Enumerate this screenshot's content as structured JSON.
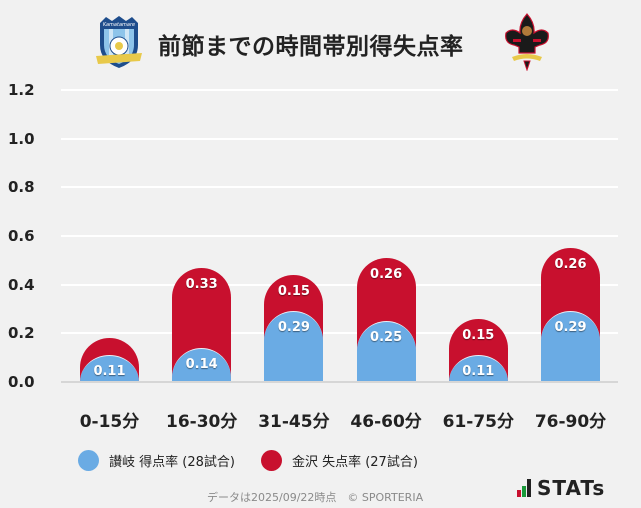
{
  "header": {
    "title": "前節までの時間帯別得失点率",
    "home_logo": "kamatamare-sanuki-crest-icon",
    "away_logo": "zweigen-kanazawa-crest-icon"
  },
  "colors": {
    "background": "#f1f1f1",
    "home_scored": "#6aabe4",
    "away_conceded": "#c8102e",
    "gridline": "#ffffff",
    "baseline": "#d6d6d6",
    "text": "#222222"
  },
  "yaxis": {
    "ticks": [
      {
        "label": "1.2",
        "value": 1.2
      },
      {
        "label": "1.0",
        "value": 1.0
      },
      {
        "label": "0.8",
        "value": 0.8
      },
      {
        "label": "0.6",
        "value": 0.6
      },
      {
        "label": "0.4",
        "value": 0.4
      },
      {
        "label": "0.2",
        "value": 0.2
      },
      {
        "label": "0.0",
        "value": 0.0
      }
    ]
  },
  "bars": [
    {
      "category": "0-15分",
      "blue": 0.11,
      "blue_label": "0.11",
      "red": 0.07,
      "red_label": ""
    },
    {
      "category": "16-30分",
      "blue": 0.14,
      "blue_label": "0.14",
      "red": 0.33,
      "red_label": "0.33"
    },
    {
      "category": "31-45分",
      "blue": 0.29,
      "blue_label": "0.29",
      "red": 0.15,
      "red_label": "0.15"
    },
    {
      "category": "46-60分",
      "blue": 0.25,
      "blue_label": "0.25",
      "red": 0.26,
      "red_label": "0.26"
    },
    {
      "category": "61-75分",
      "blue": 0.11,
      "blue_label": "0.11",
      "red": 0.15,
      "red_label": "0.15"
    },
    {
      "category": "76-90分",
      "blue": 0.29,
      "blue_label": "0.29",
      "red": 0.26,
      "red_label": "0.26"
    }
  ],
  "legend": {
    "home": "讃岐 得点率 (28試合)",
    "away": "金沢 失点率 (27試合)"
  },
  "footer": {
    "note": "データは2025/09/22時点　© SPORTERIA",
    "brand": "STATs"
  },
  "chart_data": {
    "type": "bar",
    "stacked": true,
    "title": "前節までの時間帯別得失点率",
    "categories": [
      "0-15分",
      "16-30分",
      "31-45分",
      "46-60分",
      "61-75分",
      "76-90分"
    ],
    "series": [
      {
        "name": "讃岐 得点率 (28試合)",
        "color": "#6aabe4",
        "values": [
          0.11,
          0.14,
          0.29,
          0.25,
          0.11,
          0.29
        ]
      },
      {
        "name": "金沢 失点率 (27試合)",
        "color": "#c8102e",
        "values": [
          0.07,
          0.33,
          0.15,
          0.26,
          0.15,
          0.26
        ]
      }
    ],
    "xlabel": "",
    "ylabel": "",
    "ylim": [
      0,
      1.2
    ],
    "yticks": [
      0.0,
      0.2,
      0.4,
      0.6,
      0.8,
      1.0,
      1.2
    ],
    "grid": true,
    "legend_position": "bottom",
    "annotations": [
      "データは2025/09/22時点　© SPORTERIA"
    ]
  }
}
